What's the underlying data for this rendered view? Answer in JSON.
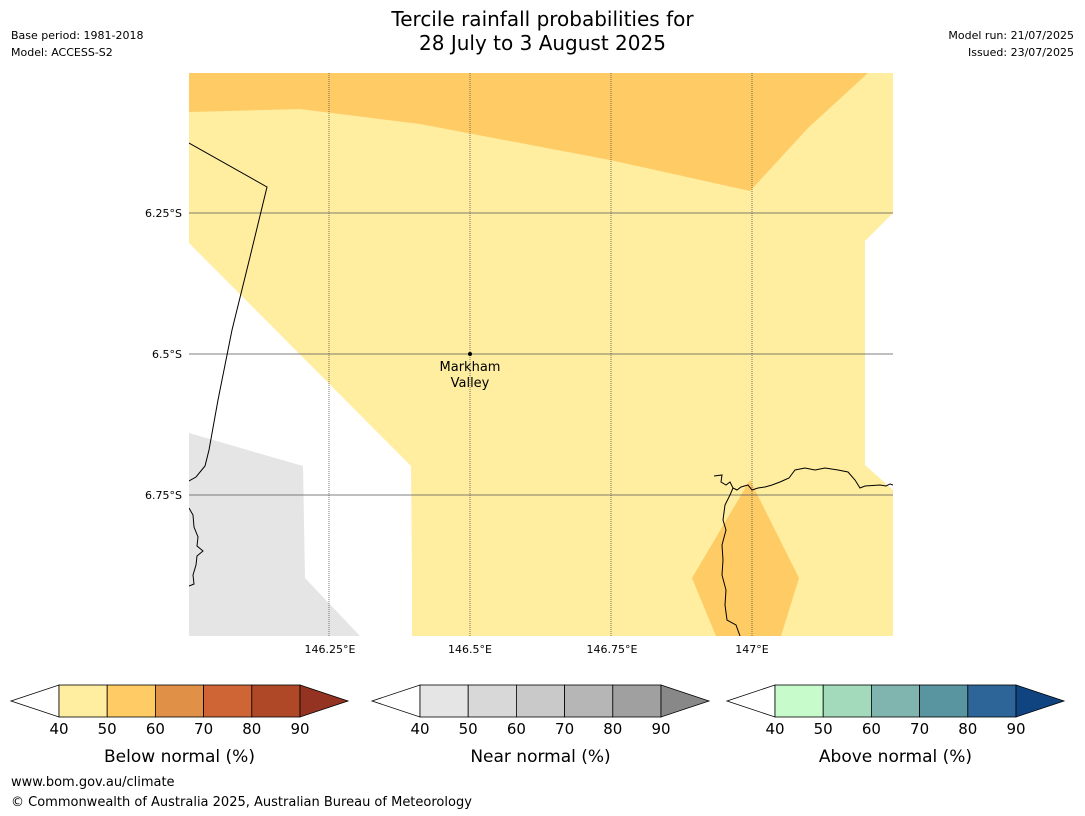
{
  "header": {
    "title_line1": "Tercile rainfall probabilities for",
    "title_line2": "28 July to 3 August 2025",
    "base_period": "Base period: 1981-2018",
    "model": "Model: ACCESS-S2",
    "model_run": "Model run: 21/07/2025",
    "issued": "Issued: 23/07/2025"
  },
  "map": {
    "lat_labels": [
      "6.25°S",
      "6.5°S",
      "6.75°S"
    ],
    "lon_labels": [
      "146.25°E",
      "146.5°E",
      "146.75°E",
      "147°E"
    ],
    "place": {
      "name_line1": "Markham",
      "name_line2": "Valley"
    }
  },
  "legends": [
    {
      "label": "Below normal (%)",
      "ticks": [
        "40",
        "50",
        "60",
        "70",
        "80",
        "90"
      ],
      "colors": [
        "#ffeda0",
        "#fecb65",
        "#e09147",
        "#cf6534",
        "#ae4827"
      ],
      "extend_color": "#953322"
    },
    {
      "label": "Near normal (%)",
      "ticks": [
        "40",
        "50",
        "60",
        "70",
        "80",
        "90"
      ],
      "colors": [
        "#e5e5e5",
        "#d8d8d8",
        "#c9c9c9",
        "#b6b6b6",
        "#a0a0a0"
      ],
      "extend_color": "#888888"
    },
    {
      "label": "Above normal (%)",
      "ticks": [
        "40",
        "50",
        "60",
        "70",
        "80",
        "90"
      ],
      "colors": [
        "#c8fbcb",
        "#a2dabb",
        "#7fb5ae",
        "#5994a1",
        "#2e6599"
      ],
      "extend_color": "#0f4480"
    }
  ],
  "footer": {
    "url": "www.bom.gov.au/climate",
    "copyright": "© Commonwealth of Australia 2025, Australian Bureau of Meteorology"
  }
}
